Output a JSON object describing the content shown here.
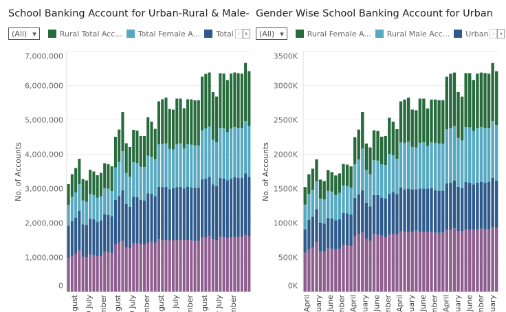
{
  "colors": {
    "green": "#276b3c",
    "cyan": "#56a9c0",
    "blue": "#2d5a8b",
    "purple": "#8e5e8e"
  },
  "left": {
    "title": "School Banking Account for Urban-Rural & Male-",
    "filter": "(All)",
    "legend": [
      "Rural Total Acc...",
      "Total Female A...",
      "Total"
    ]
  },
  "right": {
    "title": "Gender Wise School Banking Account for Urban",
    "filter": "(All)",
    "legend": [
      "Rural Female A...",
      "Rural Male Acc...",
      "Urban"
    ]
  },
  "chart_data": [
    {
      "type": "bar",
      "stacked": true,
      "title": "School Banking Account for Urban-Rural & Male-",
      "ylabel": "No. of Accounts",
      "ylim": [
        0,
        7000000
      ],
      "yticks": [
        "0",
        "1,000,000",
        "2,000,000",
        "3,000,000",
        "4,000,000",
        "5,000,000",
        "6,000,000",
        "7,000,000"
      ],
      "xticks": [
        "ugust",
        "9 July",
        "mber",
        "ugust",
        "0 July",
        "mber",
        "ugust",
        "1 July",
        "mber",
        "ugust",
        "2 July",
        "mber"
      ],
      "grid": true,
      "series": [
        {
          "color": "#8e5e8e",
          "values": [
            990000,
            1050000,
            1110000,
            1210000,
            1020000,
            1010000,
            1090000,
            1070000,
            1050000,
            1050000,
            1170000,
            1150000,
            1130000,
            1390000,
            1430000,
            1480000,
            1300000,
            1270000,
            1420000,
            1410000,
            1390000,
            1380000,
            1430000,
            1460000,
            1430000,
            1530000,
            1500000,
            1510000,
            1500000,
            1500000,
            1500000,
            1510000,
            1510000,
            1510000,
            1500000,
            1480000,
            1480000,
            1580000,
            1580000,
            1620000,
            1530000,
            1510000,
            1600000,
            1600000,
            1570000,
            1580000,
            1600000,
            1600000,
            1600000,
            1660000,
            1620000
          ]
        },
        {
          "name": "Total",
          "color": "#2d5a8b",
          "values": [
            930000,
            1000000,
            1040000,
            1140000,
            940000,
            930000,
            1030000,
            1030000,
            980000,
            1020000,
            1080000,
            1080000,
            1060000,
            1280000,
            1350000,
            1470000,
            1250000,
            1200000,
            1340000,
            1340000,
            1280000,
            1270000,
            1430000,
            1390000,
            1350000,
            1520000,
            1540000,
            1540000,
            1480000,
            1510000,
            1540000,
            1540000,
            1490000,
            1540000,
            1530000,
            1540000,
            1540000,
            1690000,
            1710000,
            1720000,
            1590000,
            1560000,
            1710000,
            1690000,
            1670000,
            1710000,
            1730000,
            1710000,
            1710000,
            1780000,
            1720000
          ]
        },
        {
          "name": "Total Female A...",
          "color": "#56a9c0",
          "values": [
            610000,
            710000,
            750000,
            780000,
            700000,
            680000,
            730000,
            720000,
            710000,
            710000,
            770000,
            770000,
            740000,
            950000,
            1000000,
            1140000,
            910000,
            880000,
            1010000,
            1000000,
            970000,
            980000,
            1100000,
            1080000,
            1080000,
            1240000,
            1260000,
            1270000,
            1180000,
            1130000,
            1260000,
            1270000,
            1170000,
            1250000,
            1250000,
            1240000,
            1240000,
            1430000,
            1470000,
            1470000,
            1300000,
            1280000,
            1460000,
            1470000,
            1410000,
            1460000,
            1460000,
            1460000,
            1460000,
            1530000,
            1490000
          ]
        },
        {
          "name": "Rural Total Acc...",
          "color": "#276b3c",
          "values": [
            600000,
            660000,
            700000,
            740000,
            620000,
            620000,
            700000,
            680000,
            650000,
            680000,
            720000,
            710000,
            720000,
            890000,
            940000,
            1140000,
            860000,
            860000,
            940000,
            940000,
            890000,
            900000,
            1120000,
            1020000,
            880000,
            1250000,
            1300000,
            1330000,
            1160000,
            1160000,
            1320000,
            1300000,
            1170000,
            1300000,
            1320000,
            1310000,
            1310000,
            1560000,
            1580000,
            1570000,
            1390000,
            1330000,
            1590000,
            1590000,
            1510000,
            1600000,
            1590000,
            1590000,
            1580000,
            1690000,
            1590000
          ]
        }
      ]
    },
    {
      "type": "bar",
      "stacked": true,
      "title": "Gender Wise School Banking Account for Urban",
      "ylabel": "No. of Accounts",
      "ylim": [
        0,
        3500
      ],
      "yunit": "K",
      "yticks": [
        "0K",
        "500K",
        "1000K",
        "1500K",
        "2000K",
        "2500K",
        "3000K",
        "3500K"
      ],
      "xticks": [
        "April",
        "ruary",
        "June",
        "mber",
        "April",
        "ruary",
        "June",
        "mber",
        "April",
        "ruary",
        "June",
        "mber",
        "April",
        "ruary",
        "June",
        "mber",
        "ruary"
      ],
      "grid": true,
      "series": [
        {
          "color": "#8e5e8e",
          "values": [
            569,
            616,
            642,
            725,
            589,
            582,
            629,
            626,
            616,
            626,
            685,
            675,
            662,
            808,
            838,
            865,
            772,
            745,
            838,
            828,
            821,
            788,
            835,
            838,
            835,
            881,
            868,
            868,
            875,
            888,
            868,
            868,
            875,
            868,
            858,
            858,
            858,
            901,
            901,
            924,
            881,
            881,
            908,
            901,
            901,
            901,
            918,
            908,
            908,
            941,
            931
          ]
        },
        {
          "name": "Urban",
          "color": "#2d5a8b",
          "values": [
            339,
            432,
            448,
            478,
            418,
            408,
            445,
            442,
            425,
            428,
            461,
            465,
            458,
            558,
            578,
            611,
            525,
            495,
            568,
            578,
            548,
            568,
            588,
            611,
            588,
            634,
            621,
            631,
            614,
            601,
            631,
            631,
            624,
            637,
            621,
            611,
            611,
            677,
            684,
            691,
            644,
            624,
            691,
            687,
            661,
            684,
            681,
            677,
            691,
            714,
            684
          ]
        },
        {
          "name": "Rural Male Acc...",
          "color": "#56a9c0",
          "values": [
            359,
            375,
            395,
            402,
            349,
            355,
            392,
            388,
            365,
            385,
            398,
            398,
            395,
            488,
            508,
            608,
            475,
            468,
            508,
            501,
            485,
            488,
            581,
            541,
            511,
            657,
            677,
            684,
            621,
            611,
            667,
            677,
            624,
            667,
            687,
            687,
            687,
            784,
            797,
            797,
            714,
            697,
            793,
            803,
            780,
            797,
            797,
            797,
            784,
            830,
            807
          ]
        },
        {
          "name": "Rural Female A...",
          "color": "#276b3c",
          "values": [
            256,
            286,
            305,
            322,
            276,
            266,
            305,
            286,
            286,
            282,
            315,
            312,
            309,
            395,
            435,
            531,
            385,
            392,
            435,
            432,
            402,
            422,
            528,
            485,
            432,
            598,
            631,
            641,
            541,
            541,
            644,
            634,
            544,
            624,
            631,
            631,
            631,
            767,
            790,
            777,
            667,
            637,
            790,
            790,
            740,
            793,
            793,
            800,
            790,
            843,
            787
          ]
        }
      ]
    }
  ]
}
